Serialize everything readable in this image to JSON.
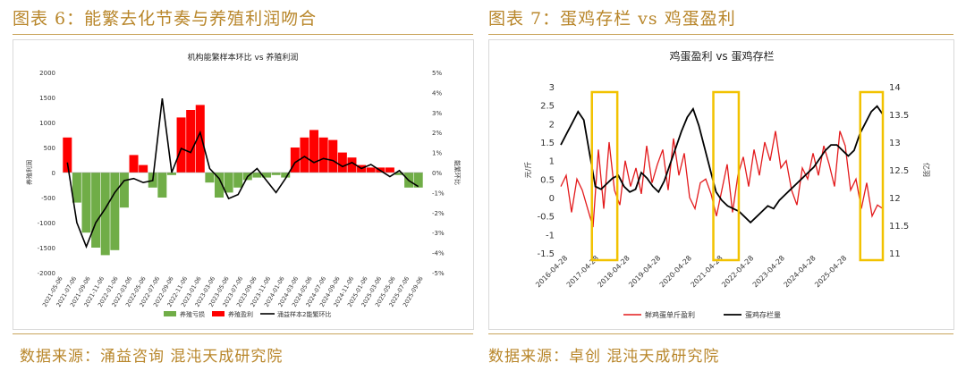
{
  "left": {
    "figure_title": "图表 6：能繁去化节奏与养殖利润吻合",
    "source": "数据来源：涌益咨询 混沌天成研究院"
  },
  "right": {
    "figure_title": "图表 7：蛋鸡存栏 vs 鸡蛋盈利",
    "source": "数据来源：卓创 混沌天成研究院"
  },
  "colors": {
    "green": "#70ad47",
    "red": "#ff0000",
    "black": "#000000",
    "crimson": "#e31a1c",
    "highlight": "#f2c200",
    "gold": "#b8862a"
  },
  "chart_data": [
    {
      "type": "bar",
      "title": "机构能繁样本环比 vs 养殖利润",
      "ylabel": "养殖利润",
      "y2label": "能繁环比",
      "ylim": [
        -2000,
        2000
      ],
      "y2lim": [
        -5,
        5
      ],
      "y_ticks": [
        "2000",
        "1500",
        "1000",
        "500",
        "0",
        "-500",
        "-1000",
        "-1500",
        "-2000"
      ],
      "y2_ticks": [
        "5%",
        "4%",
        "3%",
        "2%",
        "1%",
        "0%",
        "-1%",
        "-2%",
        "-3%",
        "-4%",
        "-5%"
      ],
      "x_ticks": [
        "2021-05-06",
        "2021-07-06",
        "2021-09-06",
        "2021-11-06",
        "2022-01-06",
        "2022-03-06",
        "2022-05-06",
        "2022-07-06",
        "2022-09-06",
        "2022-11-06",
        "2023-01-06",
        "2023-03-06",
        "2023-05-06",
        "2023-07-06",
        "2023-09-06",
        "2023-11-06",
        "2024-01-06",
        "2024-03-06",
        "2024-05-06",
        "2024-07-06",
        "2024-09-06",
        "2024-11-06",
        "2025-01-06",
        "2025-03-06",
        "2025-05-06",
        "2025-07-06",
        "2025-09-06"
      ],
      "legend": [
        "养殖亏损",
        "养殖盈利",
        "涌益样本2能繁环比"
      ],
      "profit_months": [
        700,
        -600,
        -1200,
        -1500,
        -1650,
        -1550,
        -700,
        350,
        150,
        -300,
        -500,
        -50,
        1100,
        1250,
        1350,
        -200,
        -500,
        -400,
        -300,
        -150,
        -100,
        -100,
        -50,
        -100,
        500,
        700,
        850,
        700,
        650,
        400,
        300,
        150,
        100,
        100,
        100,
        -50,
        -300,
        -300
      ],
      "sow_mom": [
        0.5,
        -2.5,
        -3.7,
        -2.5,
        -1.8,
        -1.0,
        -0.4,
        -0.3,
        -0.5,
        -0.4,
        3.7,
        0.0,
        1.2,
        1.0,
        2.0,
        0.2,
        -0.3,
        -1.3,
        -1.1,
        -0.2,
        0.2,
        -0.4,
        -1.0,
        -0.3,
        0.5,
        0.8,
        0.5,
        0.7,
        0.6,
        0.3,
        0.5,
        0.2,
        0.4,
        0.1,
        -0.2,
        0.1,
        -0.4,
        -0.7
      ]
    },
    {
      "type": "line",
      "title": "鸡蛋盈利 vs 蛋鸡存栏",
      "ylabel": "元/斤",
      "y2label": "亿羽",
      "ylim": [
        -1.5,
        3
      ],
      "y2lim": [
        11,
        14
      ],
      "y_ticks": [
        "3",
        "2.5",
        "2",
        "1.5",
        "1",
        "0.5",
        "0",
        "-0.5",
        "-1",
        "-1.5"
      ],
      "y2_ticks": [
        "14",
        "13.5",
        "13",
        "12.5",
        "12",
        "11.5",
        "11"
      ],
      "x_ticks": [
        "2016-04-28",
        "2017-04-28",
        "2018-04-28",
        "2019-04-28",
        "2020-04-28",
        "2021-04-28",
        "2022-04-28",
        "2023-04-28",
        "2024-04-28",
        "2025-04-28"
      ],
      "series": [
        {
          "name": "鲜鸡蛋单斤盈利",
          "values": [
            0.3,
            0.6,
            -0.4,
            0.5,
            0.2,
            -0.3,
            -0.8,
            1.3,
            -0.3,
            1.5,
            0.2,
            -0.2,
            1.0,
            0.3,
            0.8,
            0.1,
            1.4,
            0.4,
            0.9,
            1.3,
            0.2,
            1.6,
            0.6,
            1.2,
            0.0,
            -0.3,
            0.4,
            0.5,
            0.1,
            -0.5,
            0.2,
            0.9,
            -0.4,
            0.6,
            1.1,
            0.3,
            1.3,
            0.6,
            1.5,
            1.0,
            1.8,
            0.8,
            1.0,
            0.2,
            -0.2,
            0.8,
            0.5,
            1.2,
            0.6,
            1.4,
            0.9,
            0.3,
            1.8,
            1.4,
            0.2,
            0.5,
            -0.3,
            0.4,
            -0.5,
            -0.2,
            -0.3
          ]
        },
        {
          "name": "蛋鸡存栏量",
          "values": [
            12.95,
            13.15,
            13.35,
            13.55,
            13.4,
            12.8,
            12.2,
            12.15,
            12.25,
            12.35,
            12.4,
            12.2,
            12.1,
            12.15,
            12.45,
            12.35,
            12.2,
            12.1,
            12.3,
            12.6,
            12.9,
            13.2,
            13.45,
            13.6,
            13.3,
            12.9,
            12.5,
            12.1,
            11.95,
            11.85,
            11.8,
            11.75,
            11.65,
            11.55,
            11.65,
            11.75,
            11.85,
            11.8,
            11.95,
            12.05,
            12.15,
            12.25,
            12.35,
            12.45,
            12.55,
            12.7,
            12.85,
            12.95,
            12.95,
            12.85,
            12.75,
            12.85,
            13.15,
            13.35,
            13.55,
            13.65,
            13.5
          ]
        }
      ],
      "highlights": [
        [
          "2017-03",
          "2017-12"
        ],
        [
          "2020-10",
          "2021-07"
        ],
        [
          "2025-02",
          "2025-10"
        ]
      ]
    }
  ]
}
